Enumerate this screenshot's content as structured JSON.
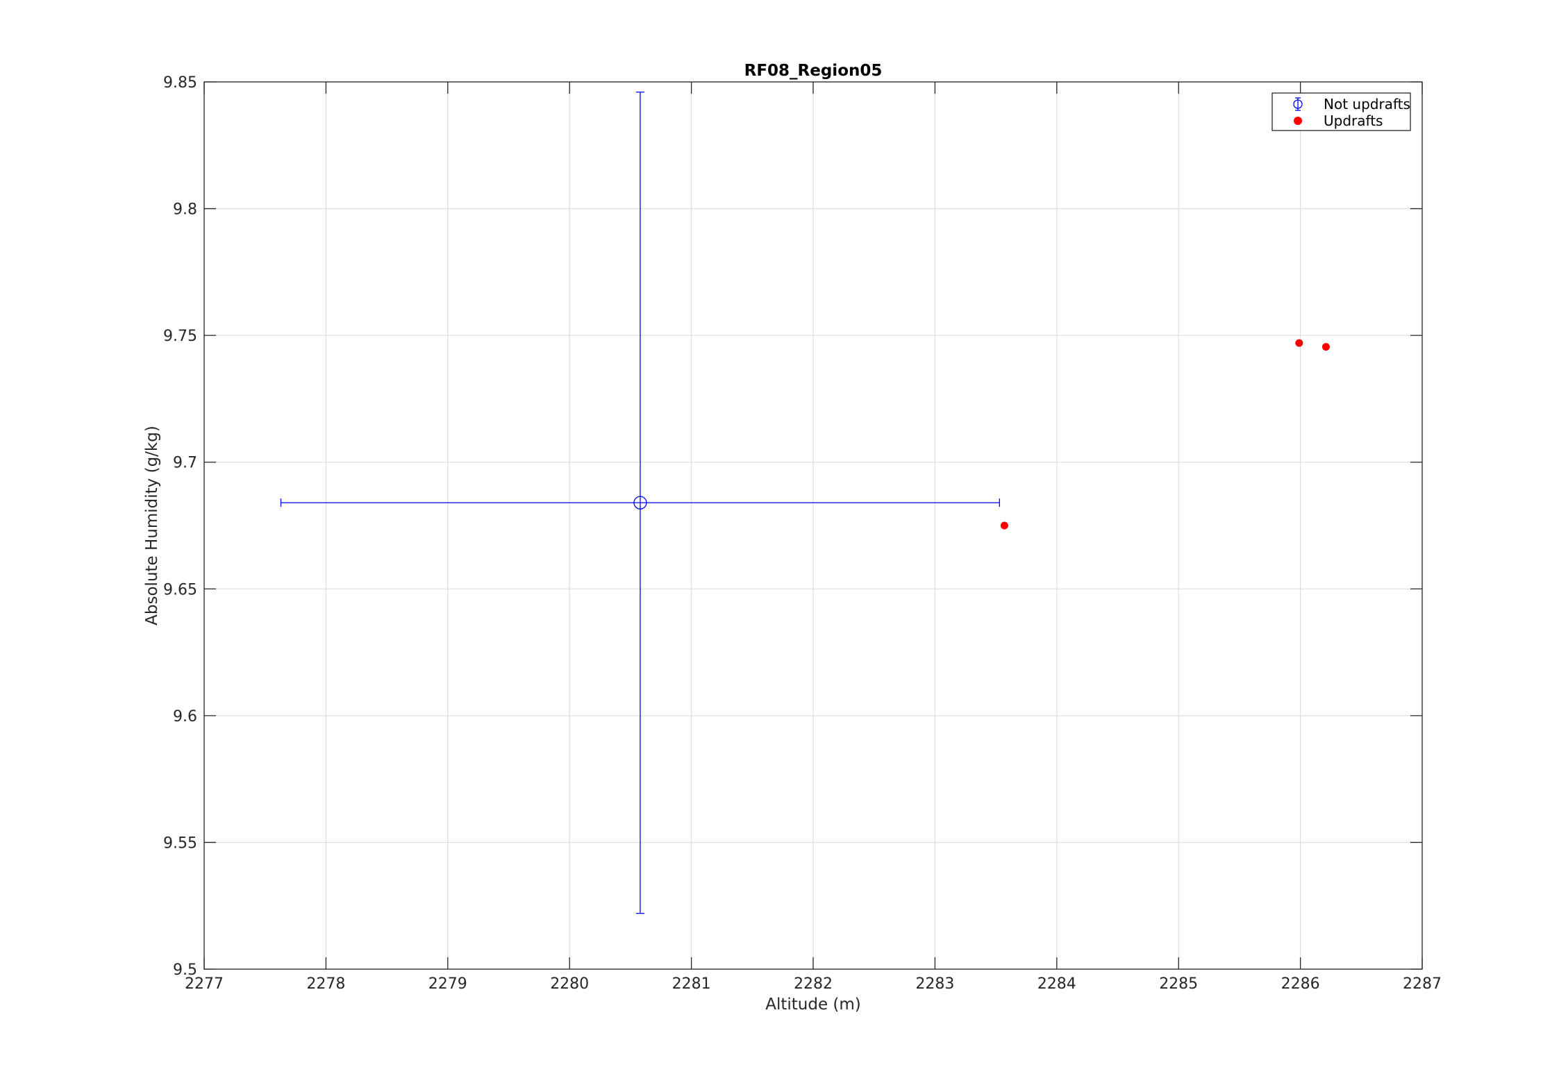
{
  "chart_data": {
    "type": "scatter",
    "title": "RF08_Region05",
    "xlabel": "Altitude (m)",
    "ylabel": "Absolute Humidity (g/kg)",
    "xlim": [
      2277,
      2287
    ],
    "ylim": [
      9.5,
      9.85
    ],
    "x_ticks": [
      "2277",
      "2278",
      "2279",
      "2280",
      "2281",
      "2282",
      "2283",
      "2284",
      "2285",
      "2286",
      "2287"
    ],
    "y_ticks": [
      "9.5",
      "9.55",
      "9.6",
      "9.65",
      "9.7",
      "9.75",
      "9.8",
      "9.85"
    ],
    "grid": true,
    "legend_position": "top-right",
    "series": [
      {
        "name": "Not updrafts",
        "marker": "open-circle",
        "color": "#0000ff",
        "points": [
          {
            "x": 2280.58,
            "y": 9.684,
            "xerr": [
              2277.63,
              2283.53
            ],
            "yerr": [
              9.522,
              9.846
            ]
          }
        ]
      },
      {
        "name": "Updrafts",
        "marker": "filled-circle",
        "color": "#ff0000",
        "points": [
          {
            "x": 2283.57,
            "y": 9.675
          },
          {
            "x": 2285.99,
            "y": 9.747
          },
          {
            "x": 2286.21,
            "y": 9.7455
          }
        ]
      }
    ]
  }
}
